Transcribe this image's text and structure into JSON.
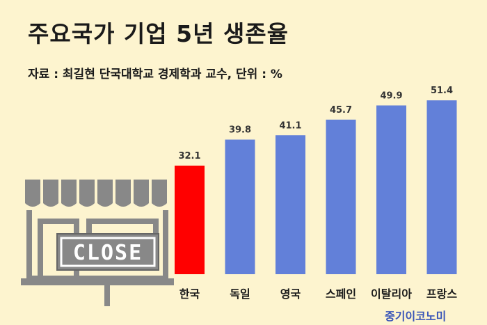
{
  "chart_data": {
    "type": "bar",
    "title": "주요국가 기업 5년 생존율",
    "subtitle": "자료 : 최길현 단국대학교 경제학과 교수, 단위 : %",
    "categories": [
      "한국",
      "독일",
      "영국",
      "스페인",
      "이탈리아",
      "프랑스"
    ],
    "values": [
      32.1,
      39.8,
      41.1,
      45.7,
      49.9,
      51.4
    ],
    "colors": [
      "#ff0000",
      "#6280d9",
      "#6280d9",
      "#6280d9",
      "#6280d9",
      "#6280d9"
    ],
    "ylim": [
      0,
      60
    ],
    "grid": false,
    "legend": "none"
  },
  "illustration": {
    "icon": "closed-shop-icon",
    "sign_text": "CLOSE"
  },
  "watermark": "중기이코노미"
}
